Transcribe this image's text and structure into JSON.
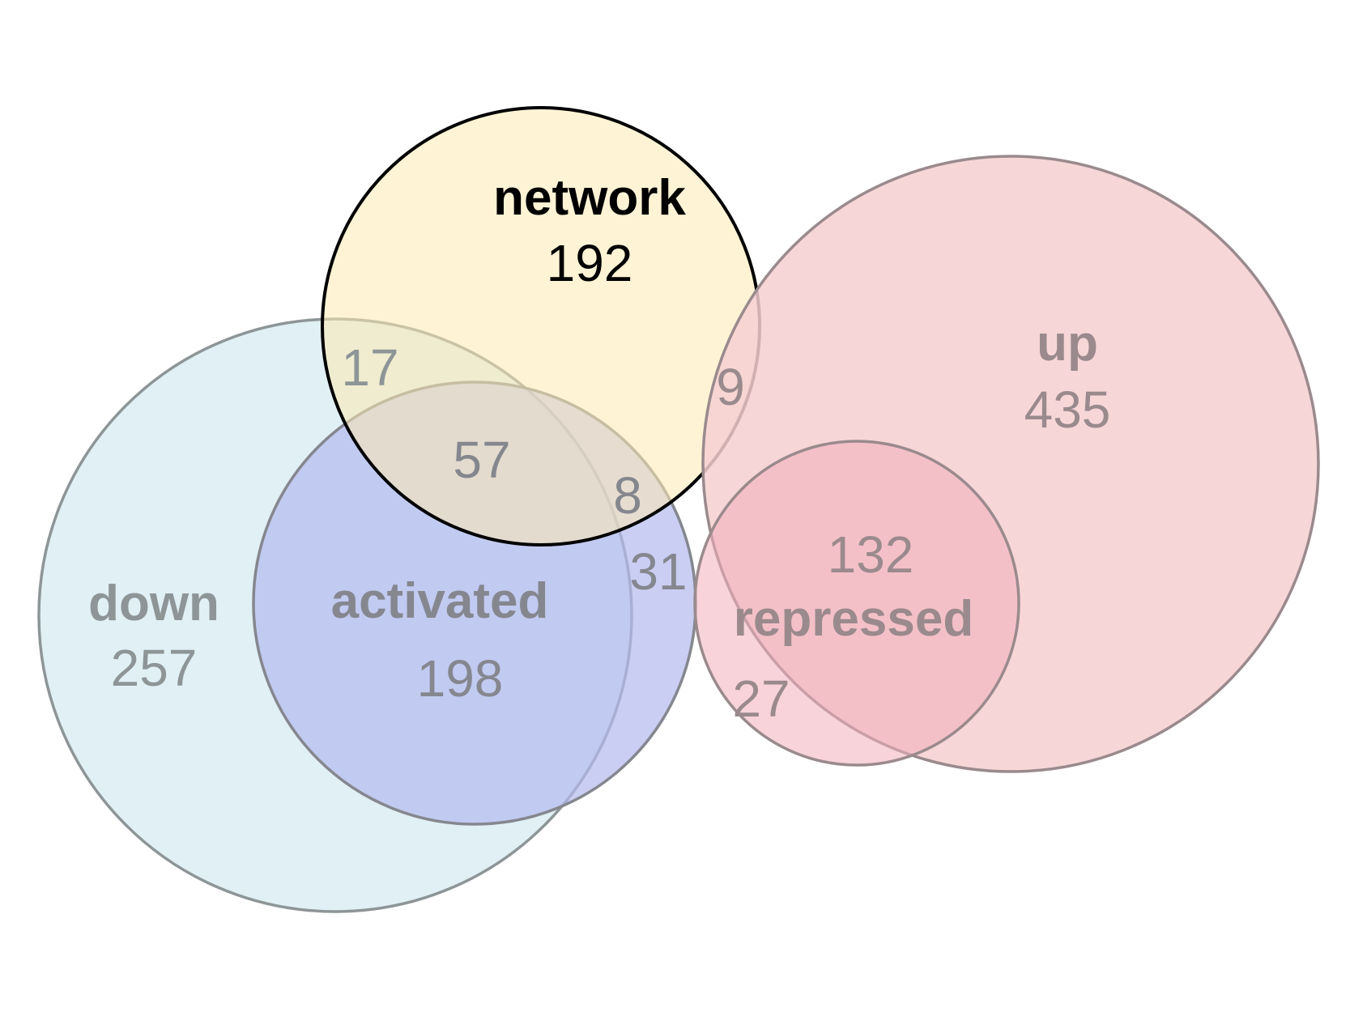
{
  "diagram": {
    "type": "venn",
    "sets": {
      "network": {
        "name": "network",
        "count": "192",
        "fill": "#fde9b3",
        "stroke": "#000000",
        "text_color": "#000000"
      },
      "down": {
        "name": "down",
        "count": "257",
        "fill": "#d9edf2",
        "stroke": "#8d9597",
        "text_color": "#8d9597"
      },
      "activated": {
        "name": "activated",
        "count": "198",
        "fill": "#b3b9ee",
        "stroke": "#85878f",
        "text_color": "#85878f"
      },
      "up": {
        "name": "up",
        "count": "435",
        "fill": "#f6cfd1",
        "stroke": "#9a8a8d",
        "text_color": "#9a8a8d"
      },
      "repressed": {
        "name": "repressed",
        "count": "132",
        "fill": "#f2aebb",
        "stroke": "#9a8a8d",
        "text_color": "#9a8a8d"
      }
    },
    "intersections": {
      "network_down": "17",
      "network_down_activated": "57",
      "network_activated": "8",
      "network_up": "9",
      "activated_only_edge": "31",
      "repressed_only": "27"
    }
  }
}
